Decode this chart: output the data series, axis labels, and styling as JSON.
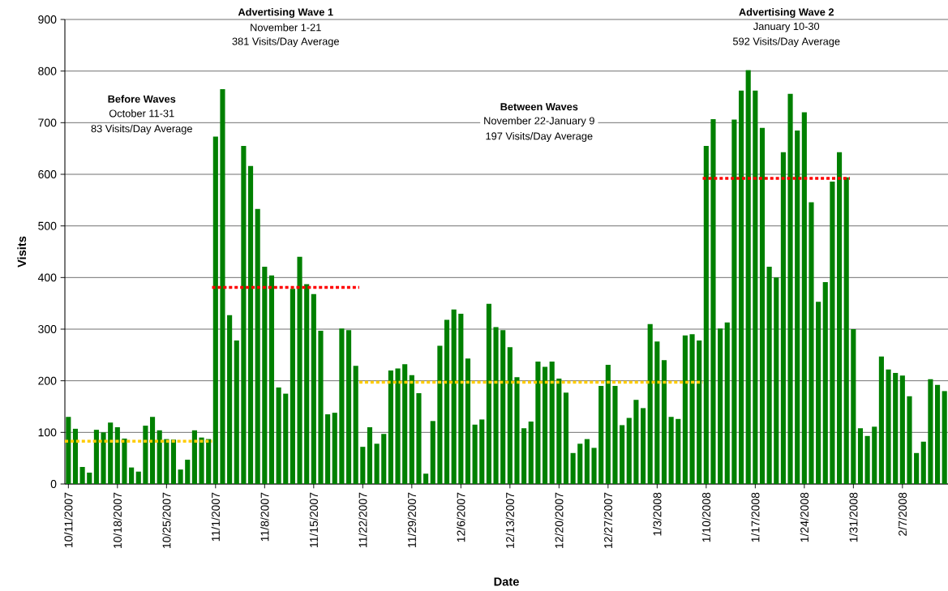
{
  "chart_data": {
    "type": "bar",
    "xlabel": "Date",
    "ylabel": "Visits",
    "x": [
      "2007-10-11",
      "2007-10-12",
      "2007-10-13",
      "2007-10-14",
      "2007-10-15",
      "2007-10-16",
      "2007-10-17",
      "2007-10-18",
      "2007-10-19",
      "2007-10-20",
      "2007-10-21",
      "2007-10-22",
      "2007-10-23",
      "2007-10-24",
      "2007-10-25",
      "2007-10-26",
      "2007-10-27",
      "2007-10-28",
      "2007-10-29",
      "2007-10-30",
      "2007-10-31",
      "2007-11-01",
      "2007-11-02",
      "2007-11-03",
      "2007-11-04",
      "2007-11-05",
      "2007-11-06",
      "2007-11-07",
      "2007-11-08",
      "2007-11-09",
      "2007-11-10",
      "2007-11-11",
      "2007-11-12",
      "2007-11-13",
      "2007-11-14",
      "2007-11-15",
      "2007-11-16",
      "2007-11-17",
      "2007-11-18",
      "2007-11-19",
      "2007-11-20",
      "2007-11-21",
      "2007-11-22",
      "2007-11-23",
      "2007-11-24",
      "2007-11-25",
      "2007-11-26",
      "2007-11-27",
      "2007-11-28",
      "2007-11-29",
      "2007-11-30",
      "2007-12-01",
      "2007-12-02",
      "2007-12-03",
      "2007-12-04",
      "2007-12-05",
      "2007-12-06",
      "2007-12-07",
      "2007-12-08",
      "2007-12-09",
      "2007-12-10",
      "2007-12-11",
      "2007-12-12",
      "2007-12-13",
      "2007-12-14",
      "2007-12-15",
      "2007-12-16",
      "2007-12-17",
      "2007-12-18",
      "2007-12-19",
      "2007-12-20",
      "2007-12-21",
      "2007-12-22",
      "2007-12-23",
      "2007-12-24",
      "2007-12-25",
      "2007-12-26",
      "2007-12-27",
      "2007-12-28",
      "2007-12-29",
      "2007-12-30",
      "2007-12-31",
      "2008-01-01",
      "2008-01-02",
      "2008-01-03",
      "2008-01-04",
      "2008-01-05",
      "2008-01-06",
      "2008-01-07",
      "2008-01-08",
      "2008-01-09",
      "2008-01-10",
      "2008-01-11",
      "2008-01-12",
      "2008-01-13",
      "2008-01-14",
      "2008-01-15",
      "2008-01-16",
      "2008-01-17",
      "2008-01-18",
      "2008-01-19",
      "2008-01-20",
      "2008-01-21",
      "2008-01-22",
      "2008-01-23",
      "2008-01-24",
      "2008-01-25",
      "2008-01-26",
      "2008-01-27",
      "2008-01-28",
      "2008-01-29",
      "2008-01-30",
      "2008-01-31",
      "2008-02-01",
      "2008-02-02",
      "2008-02-03",
      "2008-02-04",
      "2008-02-05",
      "2008-02-06",
      "2008-02-07",
      "2008-02-08",
      "2008-02-09",
      "2008-02-10",
      "2008-02-11",
      "2008-02-12",
      "2008-02-13"
    ],
    "series": [
      {
        "color": "#008000",
        "values": [
          130,
          107,
          33,
          22,
          105,
          100,
          119,
          110,
          88,
          32,
          24,
          113,
          130,
          104,
          87,
          86,
          28,
          47,
          104,
          90,
          87,
          673,
          765,
          327,
          278,
          655,
          616,
          533,
          421,
          404,
          187,
          175,
          378,
          440,
          387,
          368,
          297,
          135,
          138,
          301,
          298,
          229,
          72,
          110,
          78,
          97,
          220,
          224,
          232,
          211,
          176,
          20,
          122,
          268,
          318,
          338,
          330,
          243,
          115,
          125,
          349,
          304,
          298,
          265,
          207,
          108,
          121,
          237,
          227,
          237,
          204,
          177,
          60,
          78,
          87,
          70,
          190,
          231,
          190,
          114,
          128,
          163,
          147,
          310,
          276,
          240,
          130,
          126,
          288,
          290,
          278,
          655,
          707,
          301,
          313,
          706,
          762,
          802,
          762,
          690,
          421,
          400,
          643,
          756,
          685,
          720,
          546,
          353,
          391,
          586,
          643,
          594,
          300,
          108,
          93,
          111,
          247,
          222,
          215,
          210,
          170,
          60,
          82,
          203,
          192,
          180
        ]
      },
      {
        "type": "line",
        "color": "#ffcc00",
        "line_style": "dotted",
        "x": [
          "2007-10-10T12:00",
          "2007-10-31T12:00"
        ],
        "values": [
          83,
          83
        ]
      },
      {
        "type": "line",
        "color": "#ff0000",
        "line_style": "dotted",
        "x": [
          "2007-10-31T12:00",
          "2007-11-21T12:00"
        ],
        "values": [
          381,
          381
        ]
      },
      {
        "type": "line",
        "color": "#ffcc00",
        "line_style": "dotted",
        "x": [
          "2007-11-21T12:00",
          "2008-01-09T12:00"
        ],
        "values": [
          197,
          197
        ]
      },
      {
        "type": "line",
        "color": "#ff0000",
        "line_style": "dotted",
        "x": [
          "2008-01-09T12:00",
          "2008-01-30T12:00"
        ],
        "values": [
          592,
          592
        ]
      }
    ],
    "xlim": [
      "2007-10-10T12:00",
      "2008-02-13T12:00"
    ],
    "xticks": [
      {
        "value": "2007-10-11",
        "label": "10/11/2007"
      },
      {
        "value": "2007-10-18",
        "label": "10/18/2007"
      },
      {
        "value": "2007-10-25",
        "label": "10/25/2007"
      },
      {
        "value": "2007-11-01",
        "label": "11/1/2007"
      },
      {
        "value": "2007-11-08",
        "label": "11/8/2007"
      },
      {
        "value": "2007-11-15",
        "label": "11/15/2007"
      },
      {
        "value": "2007-11-22",
        "label": "11/22/2007"
      },
      {
        "value": "2007-11-29",
        "label": "11/29/2007"
      },
      {
        "value": "2007-12-06",
        "label": "12/6/2007"
      },
      {
        "value": "2007-12-13",
        "label": "12/13/2007"
      },
      {
        "value": "2007-12-20",
        "label": "12/20/2007"
      },
      {
        "value": "2007-12-27",
        "label": "12/27/2007"
      },
      {
        "value": "2008-01-03",
        "label": "1/3/2008"
      },
      {
        "value": "2008-01-10",
        "label": "1/10/2008"
      },
      {
        "value": "2008-01-17",
        "label": "1/17/2008"
      },
      {
        "value": "2008-01-24",
        "label": "1/24/2008"
      },
      {
        "value": "2008-01-31",
        "label": "1/31/2008"
      },
      {
        "value": "2008-02-07",
        "label": "2/7/2008"
      }
    ],
    "ylim": [
      0,
      900
    ],
    "yticks": [
      0,
      100,
      200,
      300,
      400,
      500,
      600,
      700,
      800,
      900
    ],
    "grid": "y",
    "annotations": [
      "Before Waves",
      "October 11-31",
      "83 Visits/Day Average",
      "Advertising Wave 1",
      "November 1-21",
      "381 Visits/Day Average",
      "Between Waves",
      "November 22-January 9",
      "197 Visits/Day Average",
      "Advertising Wave 2",
      "January 10-30",
      "592 Visits/Day Average"
    ]
  }
}
